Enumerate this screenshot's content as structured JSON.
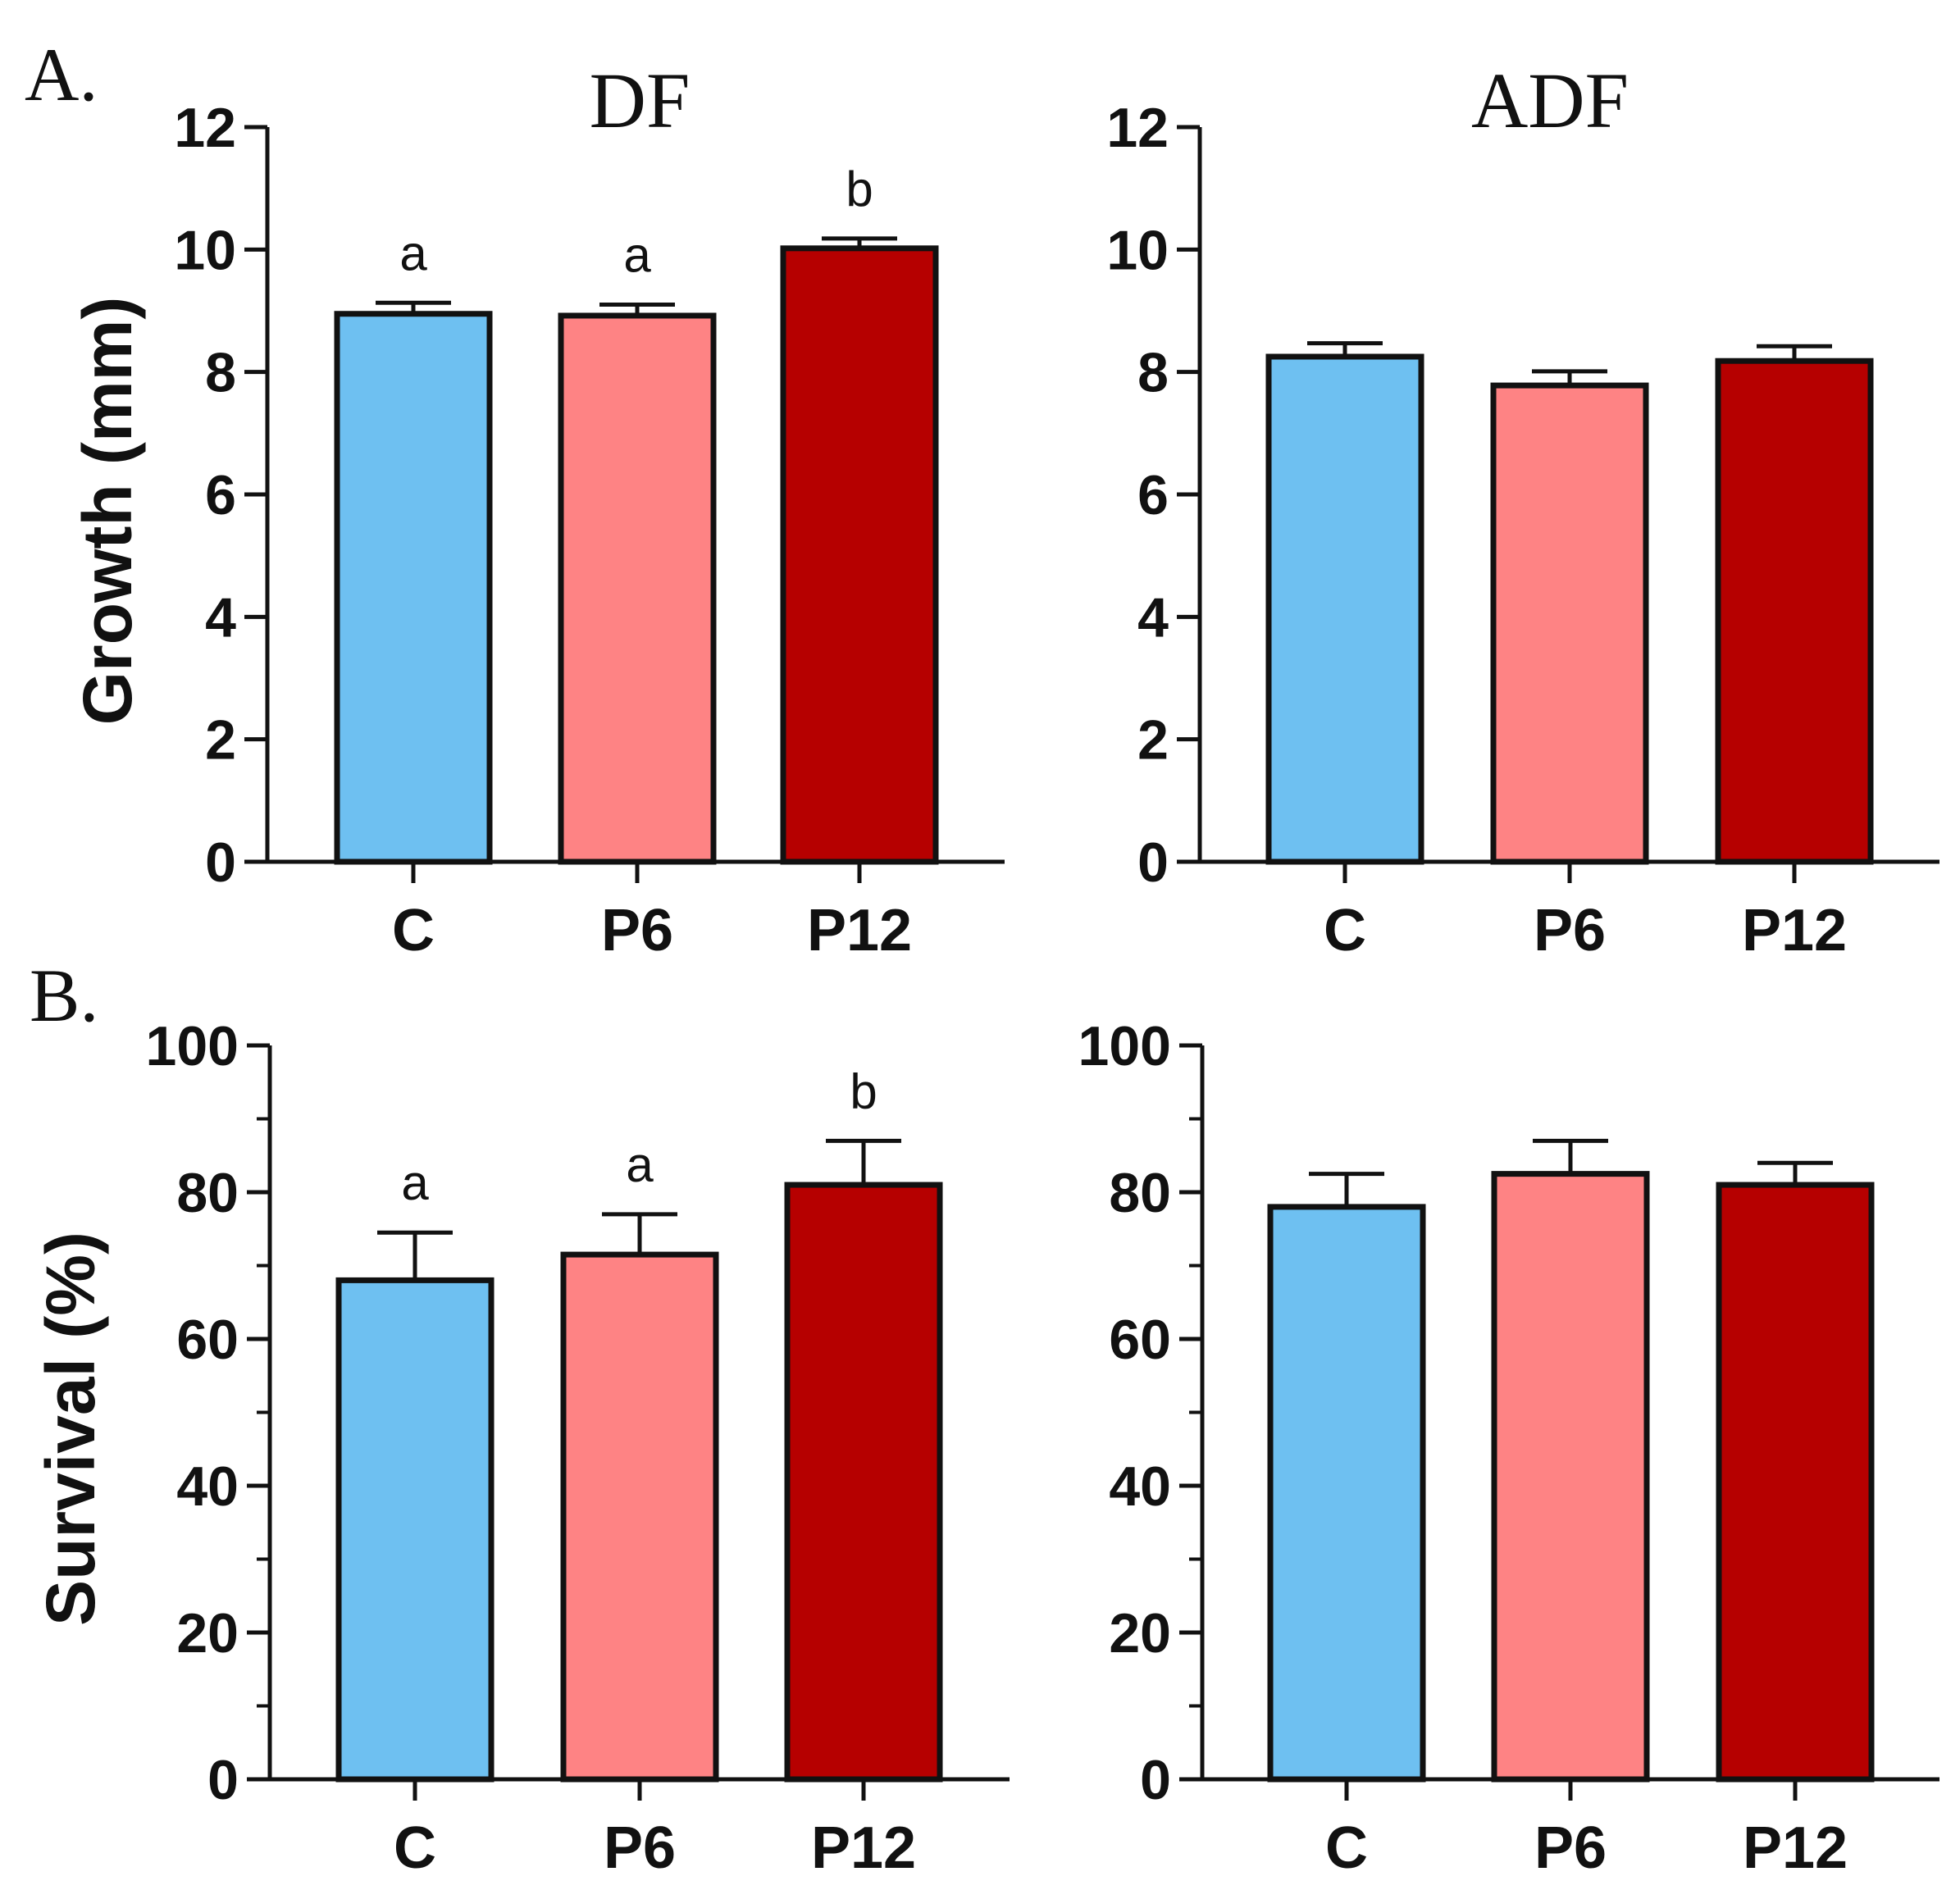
{
  "figure": {
    "panel_labels": [
      "A.",
      "B."
    ],
    "column_titles": [
      "DF",
      "ADF"
    ]
  },
  "colors": {
    "C": "#6ec0f1",
    "P6": "#fe8384",
    "P12": "#b60000",
    "outline": "#111111"
  },
  "chart_data": [
    {
      "type": "bar",
      "panel": "A.",
      "title": "DF",
      "ylabel": "Growth (mm)",
      "categories": [
        "C",
        "P6",
        "P12"
      ],
      "values": [
        8.95,
        8.92,
        10.02
      ],
      "errors": [
        0.18,
        0.18,
        0.16
      ],
      "sig_labels": [
        "a",
        "a",
        "b"
      ],
      "ylim": [
        0,
        12
      ],
      "yticks": [
        0,
        2,
        4,
        6,
        8,
        10,
        12
      ],
      "minor_per_major": 0
    },
    {
      "type": "bar",
      "panel": "A.",
      "title": "ADF",
      "ylabel": "",
      "categories": [
        "C",
        "P6",
        "P12"
      ],
      "values": [
        8.25,
        7.78,
        8.18
      ],
      "errors": [
        0.22,
        0.23,
        0.24
      ],
      "sig_labels": [],
      "ylim": [
        0,
        12
      ],
      "yticks": [
        0,
        2,
        4,
        6,
        8,
        10,
        12
      ],
      "minor_per_major": 0
    },
    {
      "type": "bar",
      "panel": "B.",
      "title": "",
      "ylabel": "Survival (%)",
      "categories": [
        "C",
        "P6",
        "P12"
      ],
      "values": [
        68,
        71.5,
        81
      ],
      "errors": [
        6.5,
        5.5,
        6
      ],
      "sig_labels": [
        "a",
        "a",
        "b"
      ],
      "ylim": [
        0,
        100
      ],
      "yticks": [
        0,
        20,
        40,
        60,
        80,
        100
      ],
      "minor_per_major": 1
    },
    {
      "type": "bar",
      "panel": "B.",
      "title": "",
      "ylabel": "",
      "categories": [
        "C",
        "P6",
        "P12"
      ],
      "values": [
        78,
        82.5,
        81
      ],
      "errors": [
        4.5,
        4.5,
        3
      ],
      "sig_labels": [],
      "ylim": [
        0,
        100
      ],
      "yticks": [
        0,
        20,
        40,
        60,
        80,
        100
      ],
      "minor_per_major": 1
    }
  ]
}
